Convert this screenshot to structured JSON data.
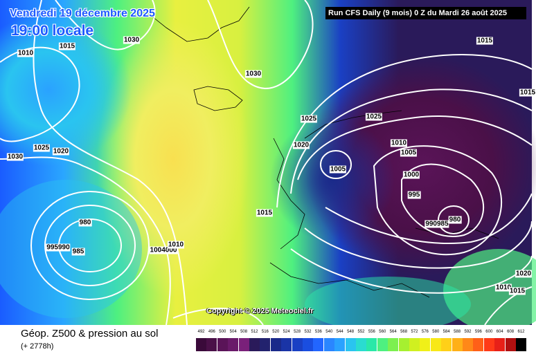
{
  "header": {
    "date": "Vendredi 19 décembre 2025",
    "local_time": "19:00 locale",
    "run_info": "Run CFS Daily (9 mois) 0 Z du Mardi 26 août 2025"
  },
  "copyright": "Copyright © 2025 Meteociel.fr",
  "footer": {
    "title": "Géop. Z500 & pression au sol",
    "subtitle": "(+ 2778h)"
  },
  "pressure_labels": [
    "1010",
    "1015",
    "1030",
    "1030",
    "1025",
    "1020",
    "1030",
    "980",
    "995990",
    "985",
    "1004000",
    "1010",
    "1015",
    "1025",
    "1020",
    "1005",
    "1015",
    "1025",
    "1010",
    "1005",
    "1000",
    "995",
    "990985",
    "980",
    "1015",
    "1020",
    "1010",
    "1015"
  ],
  "scale": {
    "values": [
      "492",
      "496",
      "500",
      "504",
      "508",
      "512",
      "516",
      "520",
      "524",
      "528",
      "532",
      "536",
      "540",
      "544",
      "548",
      "552",
      "556",
      "560",
      "564",
      "568",
      "572",
      "576",
      "580",
      "584",
      "588",
      "592",
      "596",
      "600",
      "604",
      "608",
      "612"
    ],
    "colors": [
      "#3a0a3a",
      "#4a1048",
      "#5a1458",
      "#6a1a6a",
      "#7a207a",
      "#2a1a5a",
      "#22226e",
      "#1a2a8a",
      "#1a34a6",
      "#1a40c4",
      "#1a4ee0",
      "#2266ff",
      "#2a86ff",
      "#2aa2ff",
      "#2ac4f0",
      "#2adcd0",
      "#2ae8a8",
      "#4ef080",
      "#7cf050",
      "#a6f030",
      "#d0f020",
      "#f0f018",
      "#f8e818",
      "#ffd018",
      "#ffb018",
      "#ff8818",
      "#ff6018",
      "#ff3a18",
      "#e82018",
      "#b01010",
      "#000000"
    ]
  },
  "colors": {
    "title_blue": "#1e5aff",
    "isobar": "#ffffff"
  }
}
